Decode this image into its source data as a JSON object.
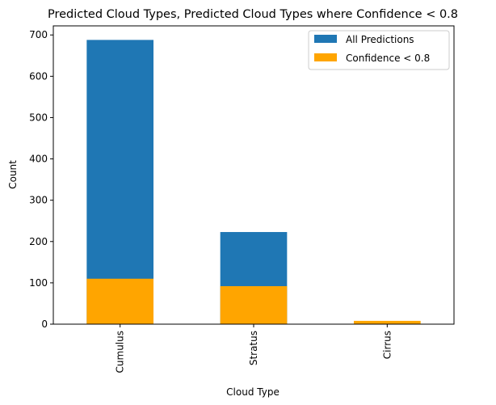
{
  "chart_data": {
    "type": "bar",
    "title": "Predicted Cloud Types, Predicted Cloud Types where Confidence < 0.8",
    "xlabel": "Cloud Type",
    "ylabel": "Count",
    "categories": [
      "Cumulus",
      "Stratus",
      "Cirrus"
    ],
    "series": [
      {
        "name": "All Predictions",
        "values": [
          688,
          223,
          0
        ],
        "color": "#1f77b4"
      },
      {
        "name": "Confidence < 0.8",
        "values": [
          110,
          92,
          8
        ],
        "color": "#ffa500"
      }
    ],
    "ylim": [
      0,
      722
    ],
    "yticks": [
      0,
      100,
      200,
      300,
      400,
      500,
      600,
      700
    ],
    "grid": false,
    "legend_position": "top-right"
  }
}
